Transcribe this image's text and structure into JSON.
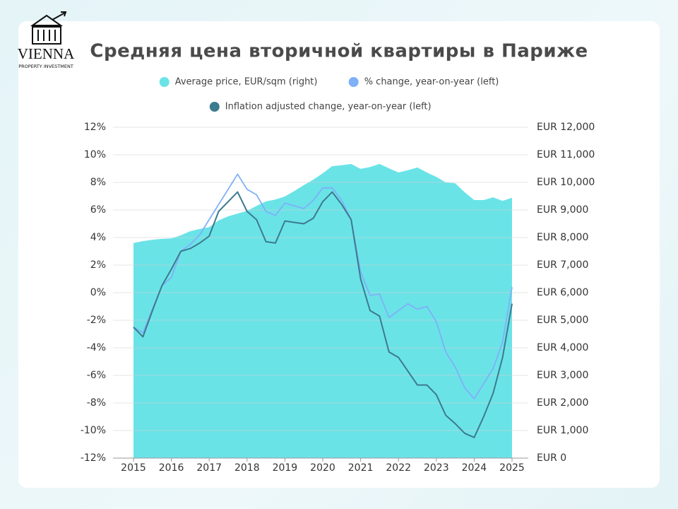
{
  "logo": {
    "name": "VIENNA",
    "tagline": "PROPERTY INVESTMENT"
  },
  "chart_data": {
    "type": "line",
    "title": "Средняя цена вторичной квартиры в Париже",
    "x": [
      2015,
      2015.25,
      2015.5,
      2015.75,
      2016,
      2016.25,
      2016.5,
      2016.75,
      2017,
      2017.25,
      2017.5,
      2017.75,
      2018,
      2018.25,
      2018.5,
      2018.75,
      2019,
      2019.25,
      2019.5,
      2019.75,
      2020,
      2020.25,
      2020.5,
      2020.75,
      2021,
      2021.25,
      2021.5,
      2021.75,
      2022,
      2022.25,
      2022.5,
      2022.75,
      2023,
      2023.25,
      2023.5,
      2023.75,
      2024,
      2024.25,
      2024.5,
      2024.75,
      2025
    ],
    "xlim": [
      2015,
      2025
    ],
    "xticks": [
      2015,
      2016,
      2017,
      2018,
      2019,
      2020,
      2021,
      2022,
      2023,
      2024,
      2025
    ],
    "ylim": [
      -12,
      12
    ],
    "yticks": [
      {
        "value": -12,
        "label": "-12%"
      },
      {
        "value": -10,
        "label": "-10%"
      },
      {
        "value": -8,
        "label": "-8%"
      },
      {
        "value": -6,
        "label": "-6%"
      },
      {
        "value": -4,
        "label": "-4%"
      },
      {
        "value": -2,
        "label": "-2%"
      },
      {
        "value": 0,
        "label": "0%"
      },
      {
        "value": 2,
        "label": "2%"
      },
      {
        "value": 4,
        "label": "4%"
      },
      {
        "value": 6,
        "label": "6%"
      },
      {
        "value": 8,
        "label": "8%"
      },
      {
        "value": 10,
        "label": "10%"
      },
      {
        "value": 12,
        "label": "12%"
      }
    ],
    "y2lim": [
      0,
      12000
    ],
    "y2ticks": [
      {
        "value": 0,
        "label": "EUR 0"
      },
      {
        "value": 1000,
        "label": "EUR 1,000"
      },
      {
        "value": 2000,
        "label": "EUR 2,000"
      },
      {
        "value": 3000,
        "label": "EUR 3,000"
      },
      {
        "value": 4000,
        "label": "EUR 4,000"
      },
      {
        "value": 5000,
        "label": "EUR 5,000"
      },
      {
        "value": 6000,
        "label": "EUR 6,000"
      },
      {
        "value": 7000,
        "label": "EUR 7,000"
      },
      {
        "value": 8000,
        "label": "EUR 8,000"
      },
      {
        "value": 9000,
        "label": "EUR 9,000"
      },
      {
        "value": 10000,
        "label": "EUR 10,000"
      },
      {
        "value": 11000,
        "label": "EUR 11,000"
      },
      {
        "value": 12000,
        "label": "EUR 12,000"
      }
    ],
    "grid": true,
    "legend": "top",
    "series": [
      {
        "name": "Average price, EUR/sqm (right)",
        "color": "#6ae3e7",
        "style": "area",
        "axis": "y2",
        "values": [
          7800,
          7870,
          7920,
          7950,
          7970,
          8080,
          8230,
          8310,
          8380,
          8620,
          8770,
          8870,
          8970,
          9150,
          9310,
          9380,
          9490,
          9690,
          9900,
          10100,
          10330,
          10590,
          10620,
          10670,
          10490,
          10560,
          10670,
          10510,
          10360,
          10440,
          10540,
          10360,
          10200,
          10000,
          9970,
          9640,
          9360,
          9360,
          9460,
          9330,
          9440
        ]
      },
      {
        "name": "% change, year-on-year (left)",
        "color": "#7fb0f8",
        "style": "line",
        "values": [
          -2.5,
          -2.9,
          -1.2,
          0.5,
          1.1,
          3.0,
          3.5,
          4.2,
          5.3,
          6.4,
          7.5,
          8.6,
          7.5,
          7.1,
          5.9,
          5.6,
          6.5,
          6.3,
          6.1,
          6.7,
          7.6,
          7.6,
          6.7,
          5.3,
          1.5,
          -0.2,
          -0.1,
          -1.8,
          -1.3,
          -0.8,
          -1.2,
          -1.0,
          -2.1,
          -4.3,
          -5.4,
          -6.9,
          -7.7,
          -6.6,
          -5.5,
          -3.6,
          0.4
        ]
      },
      {
        "name": "Inflation adjusted change, year-on-year (left)",
        "color": "#3d7a8e",
        "style": "line",
        "values": [
          -2.5,
          -3.2,
          -1.3,
          0.5,
          1.7,
          3.0,
          3.2,
          3.6,
          4.1,
          5.9,
          6.6,
          7.3,
          5.9,
          5.3,
          3.7,
          3.6,
          5.2,
          5.1,
          5.0,
          5.4,
          6.6,
          7.3,
          6.4,
          5.3,
          1.0,
          -1.3,
          -1.7,
          -4.3,
          -4.7,
          -5.7,
          -6.7,
          -6.7,
          -7.4,
          -8.9,
          -9.5,
          -10.2,
          -10.5,
          -9.0,
          -7.3,
          -4.7,
          -0.8
        ]
      }
    ]
  }
}
